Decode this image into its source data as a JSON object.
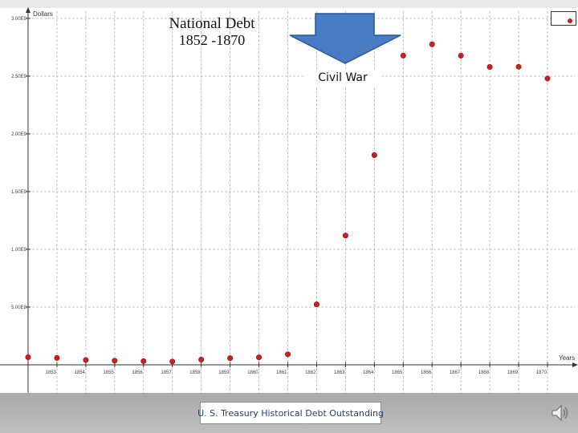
{
  "title": {
    "line1": "National Debt",
    "line2": "1852 -1870"
  },
  "annotation": {
    "text": "Civil War",
    "arrow_color": "#4a7cc4"
  },
  "legend": {
    "label": "",
    "marker_color": "#cc1f1f"
  },
  "footer": {
    "source_text": "U. S. Treasury Historical Debt Outstanding",
    "speaker_icon": "speaker-icon"
  },
  "chart_data": {
    "type": "scatter",
    "ylabel": "Dollars",
    "xlabel": "Years",
    "ylim": [
      0,
      3000000000
    ],
    "xlim": [
      1852,
      1870
    ],
    "grid": true,
    "legend_position": "top-right",
    "marker_color": "#cc1f1f",
    "y_ticks": [
      {
        "value": 500000000,
        "label": "5.00E8"
      },
      {
        "value": 1000000000,
        "label": "1.00E9"
      },
      {
        "value": 1500000000,
        "label": "1.50E9"
      },
      {
        "value": 2000000000,
        "label": "2.00E9"
      },
      {
        "value": 2500000000,
        "label": "2.50E9"
      },
      {
        "value": 3000000000,
        "label": "3.00E9"
      }
    ],
    "x_ticks": [
      "1853",
      "1854",
      "1855",
      "1856",
      "1857",
      "1858",
      "1859",
      "1860",
      "1861",
      "1862",
      "1863",
      "1864",
      "1865",
      "1866",
      "1867",
      "1868",
      "1869",
      "1870"
    ],
    "x": [
      1852,
      1853,
      1854,
      1855,
      1856,
      1857,
      1858,
      1859,
      1860,
      1861,
      1862,
      1863,
      1864,
      1865,
      1866,
      1867,
      1868,
      1869,
      1870
    ],
    "y": [
      66000000,
      60000000,
      42000000,
      36000000,
      32000000,
      29000000,
      45000000,
      58000000,
      65000000,
      91000000,
      524000000,
      1120000000,
      1816000000,
      2678000000,
      2776000000,
      2678000000,
      2580000000,
      2581000000,
      2480000000
    ]
  }
}
